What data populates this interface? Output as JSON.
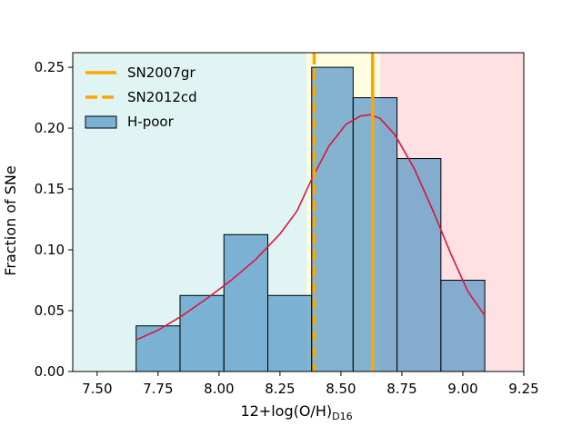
{
  "chart_data": {
    "type": "histogram",
    "xlabel_main": "12+log(O/H)",
    "xlabel_sub": "D16",
    "ylabel": "Fraction of SNe",
    "xlim": [
      7.4,
      9.25
    ],
    "ylim": [
      0,
      0.262
    ],
    "x_ticks": [
      7.5,
      7.75,
      8.0,
      8.25,
      8.5,
      8.75,
      9.0,
      9.25
    ],
    "x_tick_labels": [
      "7.50",
      "7.75",
      "8.00",
      "8.25",
      "8.50",
      "8.75",
      "9.00",
      "9.25"
    ],
    "y_ticks": [
      0.0,
      0.05,
      0.1,
      0.15,
      0.2,
      0.25
    ],
    "y_tick_labels": [
      "0.00",
      "0.05",
      "0.10",
      "0.15",
      "0.20",
      "0.25"
    ],
    "regions": [
      {
        "name": "low",
        "from": 7.4,
        "to": 8.36,
        "color": "#e0f5f3"
      },
      {
        "name": "mid",
        "from": 8.36,
        "to": 8.66,
        "color": "#fffde0"
      },
      {
        "name": "high",
        "from": 8.66,
        "to": 9.25,
        "color": "#ffe1e4"
      }
    ],
    "bins": [
      {
        "left": 7.66,
        "right": 7.84,
        "value": 0.0375
      },
      {
        "left": 7.84,
        "right": 8.02,
        "value": 0.0625
      },
      {
        "left": 8.02,
        "right": 8.2,
        "value": 0.1125
      },
      {
        "left": 8.2,
        "right": 8.38,
        "value": 0.0625
      },
      {
        "left": 8.38,
        "right": 8.55,
        "value": 0.25
      },
      {
        "left": 8.55,
        "right": 8.73,
        "value": 0.225
      },
      {
        "left": 8.73,
        "right": 8.91,
        "value": 0.175
      },
      {
        "left": 8.91,
        "right": 9.09,
        "value": 0.075
      }
    ],
    "kde": {
      "x": [
        7.66,
        7.75,
        7.85,
        7.95,
        8.05,
        8.15,
        8.25,
        8.32,
        8.38,
        8.45,
        8.52,
        8.58,
        8.62,
        8.66,
        8.72,
        8.8,
        8.88,
        8.95,
        9.02,
        9.09
      ],
      "y": [
        0.026,
        0.034,
        0.046,
        0.06,
        0.075,
        0.092,
        0.113,
        0.132,
        0.158,
        0.185,
        0.203,
        0.21,
        0.211,
        0.208,
        0.195,
        0.167,
        0.131,
        0.097,
        0.066,
        0.046
      ]
    },
    "vlines": [
      {
        "name": "SN2007gr",
        "x": 8.63,
        "style": "solid",
        "color": "#ffa500"
      },
      {
        "name": "SN2012cd",
        "x": 8.39,
        "style": "dashed",
        "color": "#ffa500"
      }
    ],
    "hist_color": "#5a9ac8",
    "kde_color": "#dc143c",
    "legend": {
      "placement": "top-left",
      "entries": [
        {
          "label": "SN2007gr",
          "kind": "solid-line"
        },
        {
          "label": "SN2012cd",
          "kind": "dashed-line"
        },
        {
          "label": "H-poor",
          "kind": "patch"
        }
      ]
    }
  }
}
